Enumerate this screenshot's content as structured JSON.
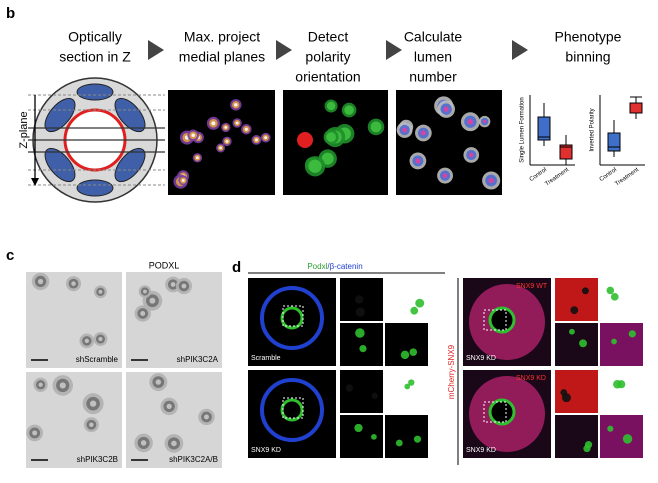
{
  "panel_b": {
    "label": "b",
    "steps": [
      [
        "Optically",
        "section in Z"
      ],
      [
        "Max. project",
        "medial planes"
      ],
      [
        "Detect",
        "polarity",
        "orientation"
      ],
      [
        "Calculate",
        "lumen",
        "number"
      ],
      [
        "Phenotype",
        "binning"
      ]
    ],
    "axis_label": "Z-plane",
    "plots": [
      {
        "ylabel": "Single Lumen Formation",
        "groups": [
          "Control",
          "Treatment"
        ]
      },
      {
        "ylabel": "Inverted Polarity",
        "groups": [
          "Control",
          "Treatment"
        ]
      }
    ]
  },
  "panel_c": {
    "label": "c",
    "title": "PODXL",
    "images": [
      "shScramble",
      "shPIK3C2A",
      "shPIK3C2B",
      "shPIK3C2A/B"
    ]
  },
  "panel_d": {
    "label": "d",
    "title_parts": [
      "Podxl",
      "/β-catenin"
    ],
    "left_images": [
      "Scramble",
      "SNX9 KD"
    ],
    "side_label": "mCherry-SNX9",
    "right_images": [
      {
        "overlay": "SNX9 WT",
        "label": "SNX9 KD"
      },
      {
        "overlay": "SNX9 KD",
        "label": "SNX9 KD"
      }
    ]
  }
}
